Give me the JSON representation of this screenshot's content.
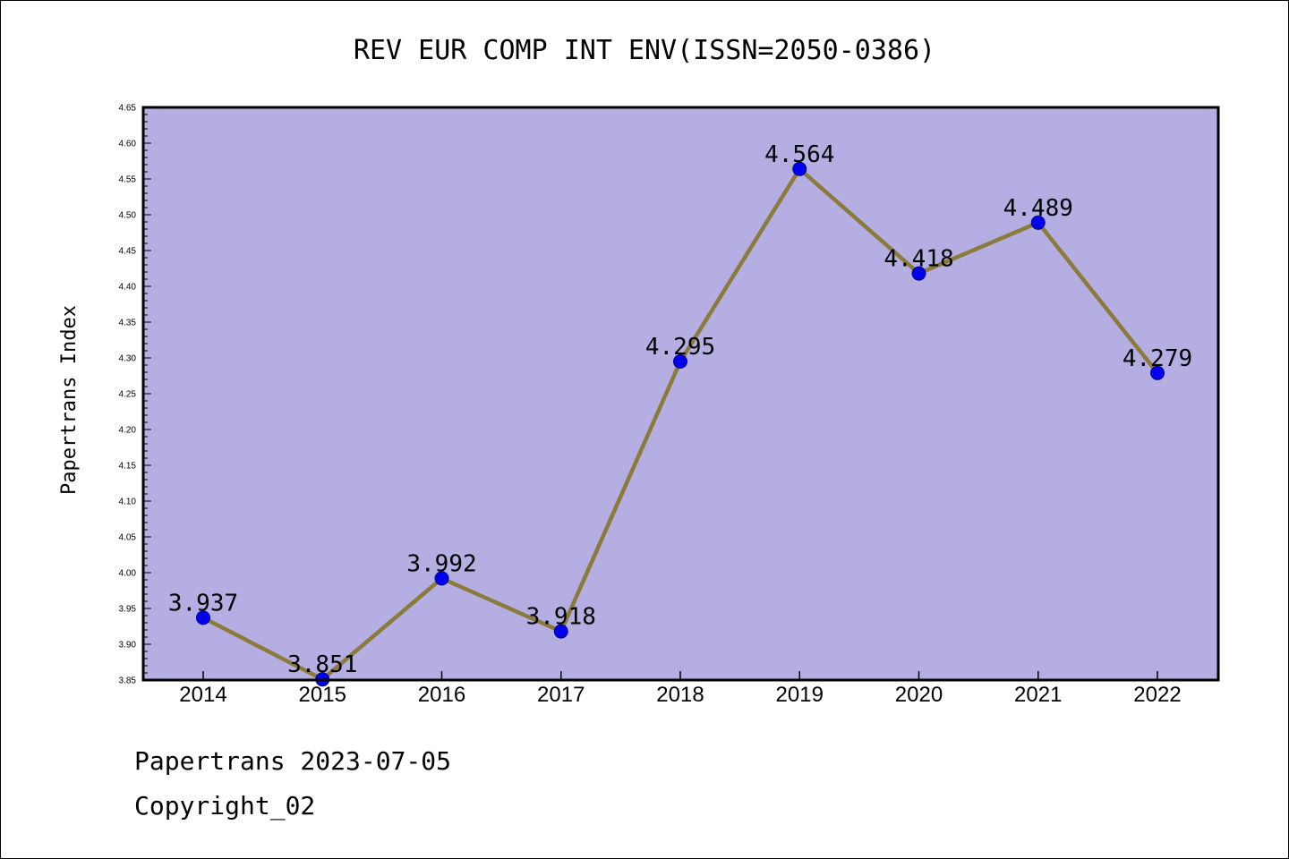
{
  "chart_data": {
    "type": "line",
    "title": "REV EUR COMP INT ENV(ISSN=2050-0386)",
    "xlabel": "",
    "ylabel": "Papertrans Index",
    "categories": [
      "2014",
      "2015",
      "2016",
      "2017",
      "2018",
      "2019",
      "2020",
      "2021",
      "2022"
    ],
    "series": [
      {
        "values": [
          3.937,
          3.851,
          3.992,
          3.918,
          4.295,
          4.564,
          4.418,
          4.489,
          4.279
        ],
        "labels": [
          "3.937",
          "3.851",
          "3.992",
          "3.918",
          "4.295",
          "4.564",
          "4.418",
          "4.489",
          "4.279"
        ]
      }
    ],
    "ylim": [
      3.85,
      4.65
    ],
    "yticks": [
      "3.85",
      "3.90",
      "3.95",
      "4.00",
      "4.05",
      "4.10",
      "4.15",
      "4.20",
      "4.25",
      "4.30",
      "4.35",
      "4.40",
      "4.45",
      "4.50",
      "4.55",
      "4.60",
      "4.65"
    ],
    "grid": false,
    "legend": "none",
    "colors": {
      "plot_background": "#b4aee2",
      "line": "#8b7b3a",
      "marker": "#0000ee",
      "axis": "#000000"
    }
  },
  "footer": {
    "line1": "Papertrans 2023-07-05",
    "line2": "Copyright_02"
  }
}
